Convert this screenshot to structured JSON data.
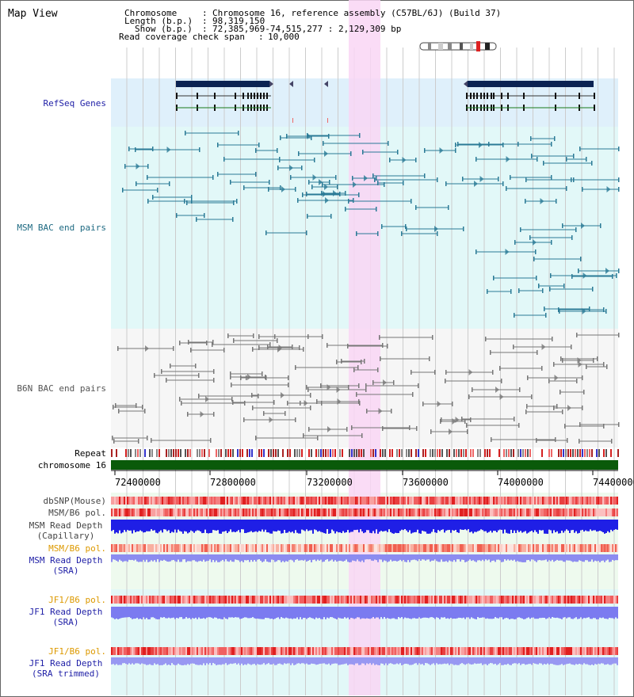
{
  "page_title": "Map View",
  "header": {
    "chromosome_label": "Chromosome",
    "chromosome_value": "Chromosome 16, reference assembly (C57BL/6J) (Build 37)",
    "length_label": "Length (b.p.)",
    "length_value": "98,319,150",
    "show_label": "Show (b.p.)",
    "show_value": "72,385,969-74,515,277 : 2,129,309 bp",
    "coverage_label": "Read coverage check span",
    "coverage_value": "10,000"
  },
  "tracks": {
    "refseq": "RefSeq Genes",
    "msm_bac": "MSM BAC end pairs",
    "b6n_bac": "B6N BAC end pairs",
    "repeat": "Repeat",
    "chromosome": "chromosome 16",
    "dbsnp": "dbSNP(Mouse)",
    "msm_b6_pol": "MSM/B6 pol.",
    "msm_depth_cap_1": "MSM Read Depth",
    "msm_depth_cap_2": "(Capillary)",
    "msm_b6_pol_2": "MSM/B6 pol.",
    "msm_depth_sra_1": "MSM Read Depth",
    "msm_depth_sra_2": "(SRA)",
    "jf1_b6_pol": "JF1/B6 pol.",
    "jf1_depth_sra_1": "JF1 Read Depth",
    "jf1_depth_sra_2": "(SRA)",
    "jf1_b6_pol_2": "JF1/B6 pol.",
    "jf1_depth_trim_1": "JF1 Read Depth",
    "jf1_depth_trim_2": "(SRA trimmed)"
  },
  "axis": {
    "ticks": [
      "72400000",
      "72800000",
      "73200000",
      "73600000",
      "74000000",
      "74400000"
    ]
  },
  "colors": {
    "refseq_bg": "#dff0fb",
    "msm_bg": "#e2f8f8",
    "b6n_bg": "#f6f6f6",
    "highlight": "#f9d6f4",
    "gene_dark": "#0b2252",
    "msm_feature": "#2a7a96",
    "b6n_feature": "#777777",
    "chromosome_bar": "#0a5a0a",
    "depth_blue": "#1f1fe6",
    "depth_light": "#8c8cf0",
    "label_blue": "#1e1ea6",
    "label_orange": "#dd9900"
  }
}
